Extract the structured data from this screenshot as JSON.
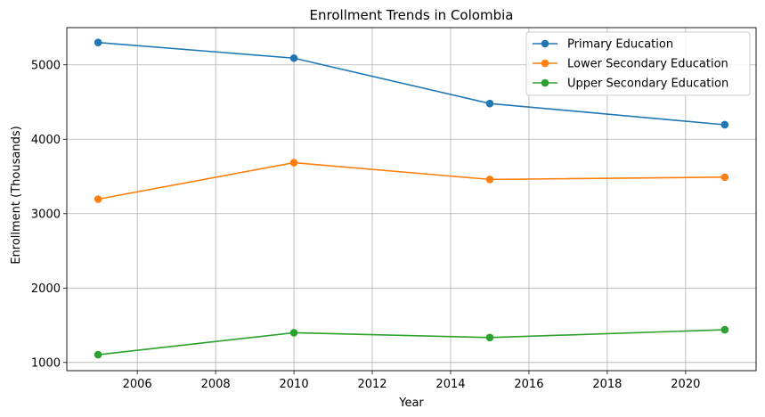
{
  "chart_data": {
    "type": "line",
    "title": "Enrollment Trends in Colombia",
    "xlabel": "Year",
    "ylabel": "Enrollment (Thousands)",
    "x": [
      2005,
      2010,
      2015,
      2021
    ],
    "xlim": [
      2004.2,
      2021.8
    ],
    "ylim": [
      890,
      5500
    ],
    "xticks": [
      2006,
      2008,
      2010,
      2012,
      2014,
      2016,
      2018,
      2020
    ],
    "yticks": [
      1000,
      2000,
      3000,
      4000,
      5000
    ],
    "grid": true,
    "legend_position": "top-right",
    "series": [
      {
        "name": "Primary Education",
        "color": "#1f77b4",
        "values": [
          5300,
          5090,
          4480,
          4195
        ]
      },
      {
        "name": "Lower Secondary Education",
        "color": "#ff7f0e",
        "values": [
          3195,
          3685,
          3460,
          3490
        ]
      },
      {
        "name": "Upper Secondary Education",
        "color": "#2ca02c",
        "values": [
          1105,
          1400,
          1335,
          1440
        ]
      }
    ]
  }
}
